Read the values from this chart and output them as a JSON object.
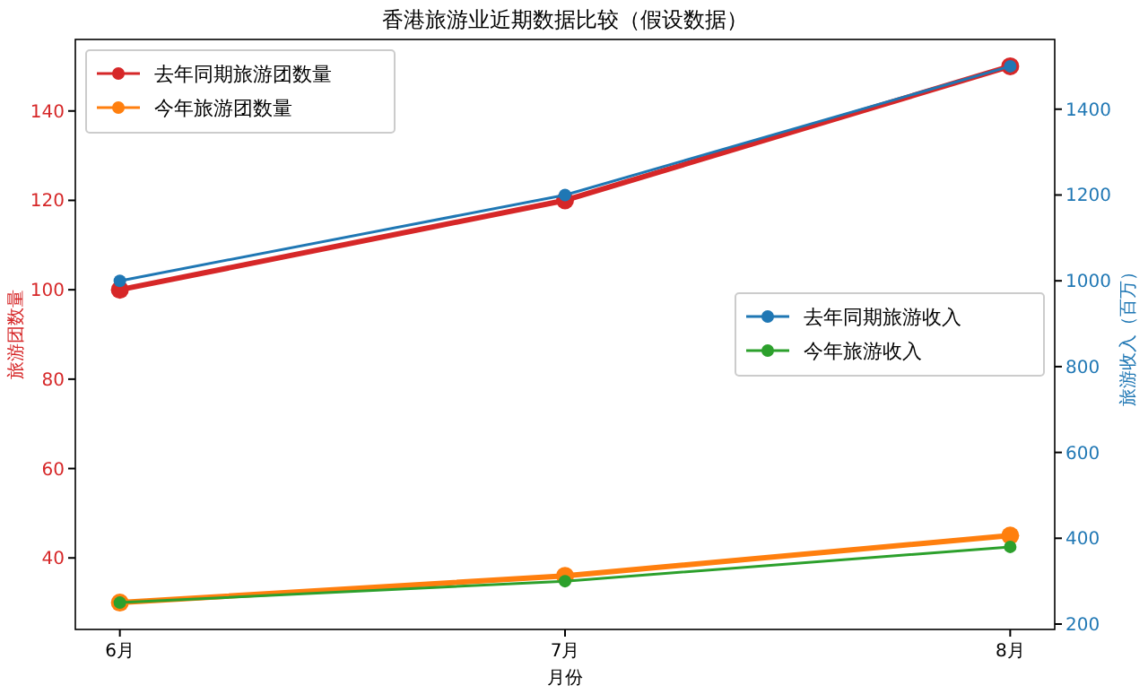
{
  "chart_data": {
    "type": "line",
    "title": "香港旅游业近期数据比较（假设数据）",
    "xlabel": "月份",
    "ylabel": "旅游团数量",
    "y2label": "旅游收入（百万）",
    "categories": [
      "6月",
      "7月",
      "8月"
    ],
    "series": [
      {
        "name": "去年同期旅游团数量",
        "color": "#d62728",
        "values": [
          100,
          120,
          150
        ]
      },
      {
        "name": "今年旅游团数量",
        "color": "#ff7f0e",
        "values": [
          30,
          36,
          45
        ]
      },
      {
        "name": "去年同期旅游收入",
        "color": "#1f77b4",
        "values": [
          1000,
          1200,
          1500
        ],
        "axis": "y2"
      },
      {
        "name": "今年旅游收入",
        "color": "#2ca02c",
        "values": [
          250,
          300,
          380
        ],
        "axis": "y2"
      }
    ],
    "ylim": [
      24,
      156
    ],
    "yticks": [
      40,
      60,
      80,
      100,
      120,
      140
    ],
    "y2lim": [
      187.5,
      1562.5
    ],
    "y2ticks": [
      200,
      400,
      600,
      800,
      1000,
      1200,
      1400
    ],
    "marker": "circle",
    "line_style": "solid",
    "legend": "top left",
    "grid": false
  }
}
